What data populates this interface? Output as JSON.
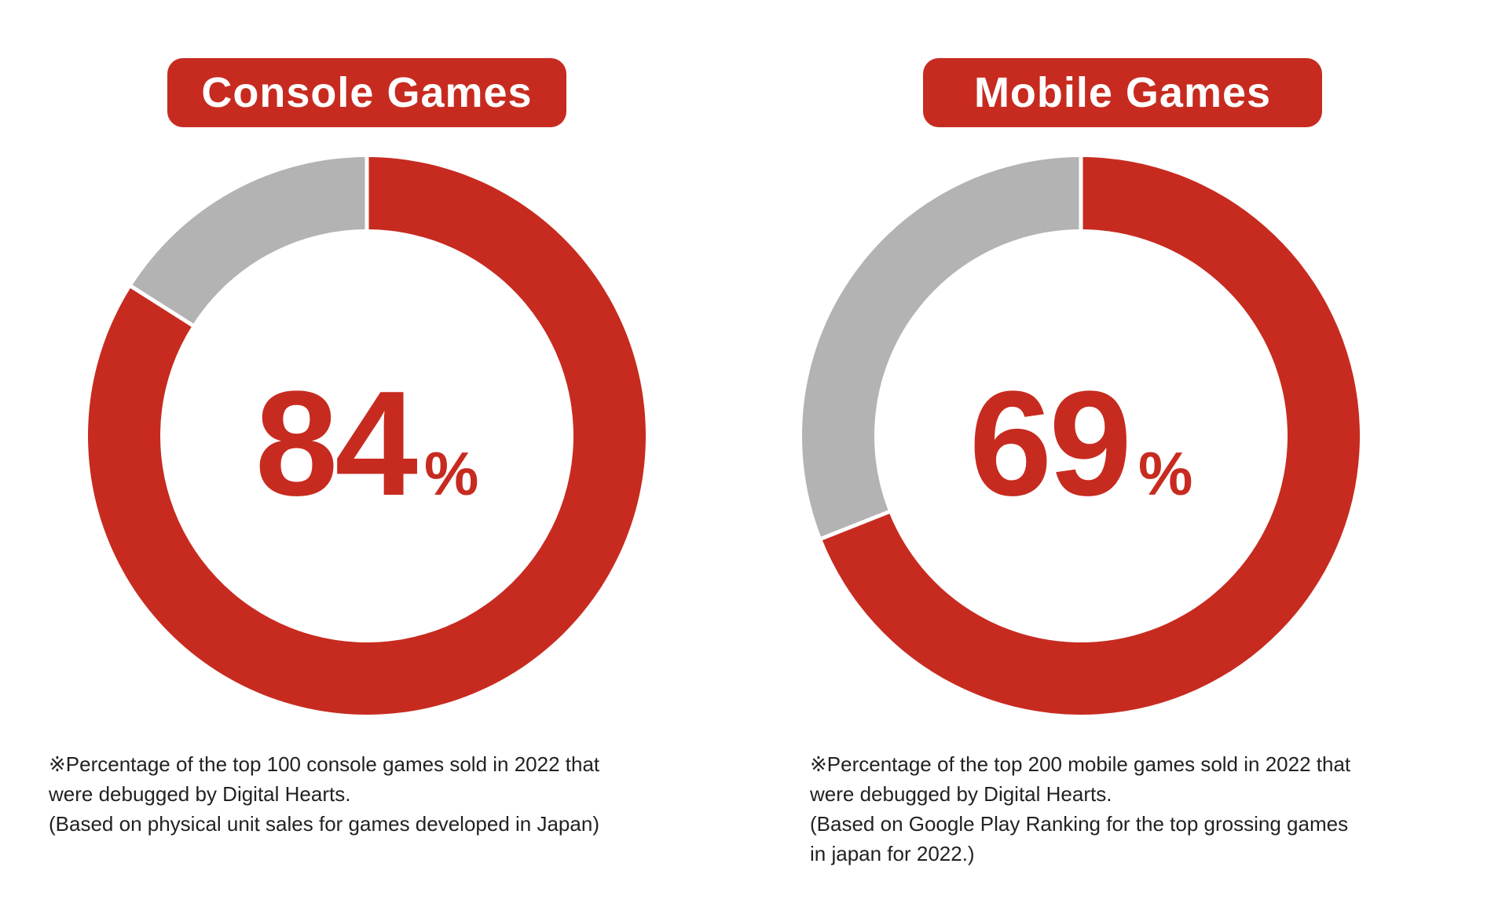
{
  "colors": {
    "accent": "#c72b20",
    "remainder": "#b3b3b3",
    "divider": "#ffffff"
  },
  "chart_data": [
    {
      "type": "pie",
      "title": "Console Games",
      "slices": [
        {
          "label": "Debugged by Digital Hearts",
          "value": 84
        },
        {
          "label": "Other",
          "value": 16
        }
      ],
      "center_value": "84",
      "center_unit": "%",
      "notes": [
        "※Percentage of the top 100 console games sold in 2022 that",
        "were debugged by Digital Hearts.",
        "(Based on physical unit sales for games developed in Japan)"
      ]
    },
    {
      "type": "pie",
      "title": "Mobile Games",
      "slices": [
        {
          "label": "Debugged by Digital Hearts",
          "value": 69
        },
        {
          "label": "Other",
          "value": 31
        }
      ],
      "center_value": "69",
      "center_unit": "%",
      "notes": [
        "※Percentage of the top 200 mobile games sold in 2022 that",
        "were debugged by Digital Hearts.",
        "(Based on Google Play Ranking for the top grossing games",
        "in japan for 2022.)"
      ]
    }
  ]
}
